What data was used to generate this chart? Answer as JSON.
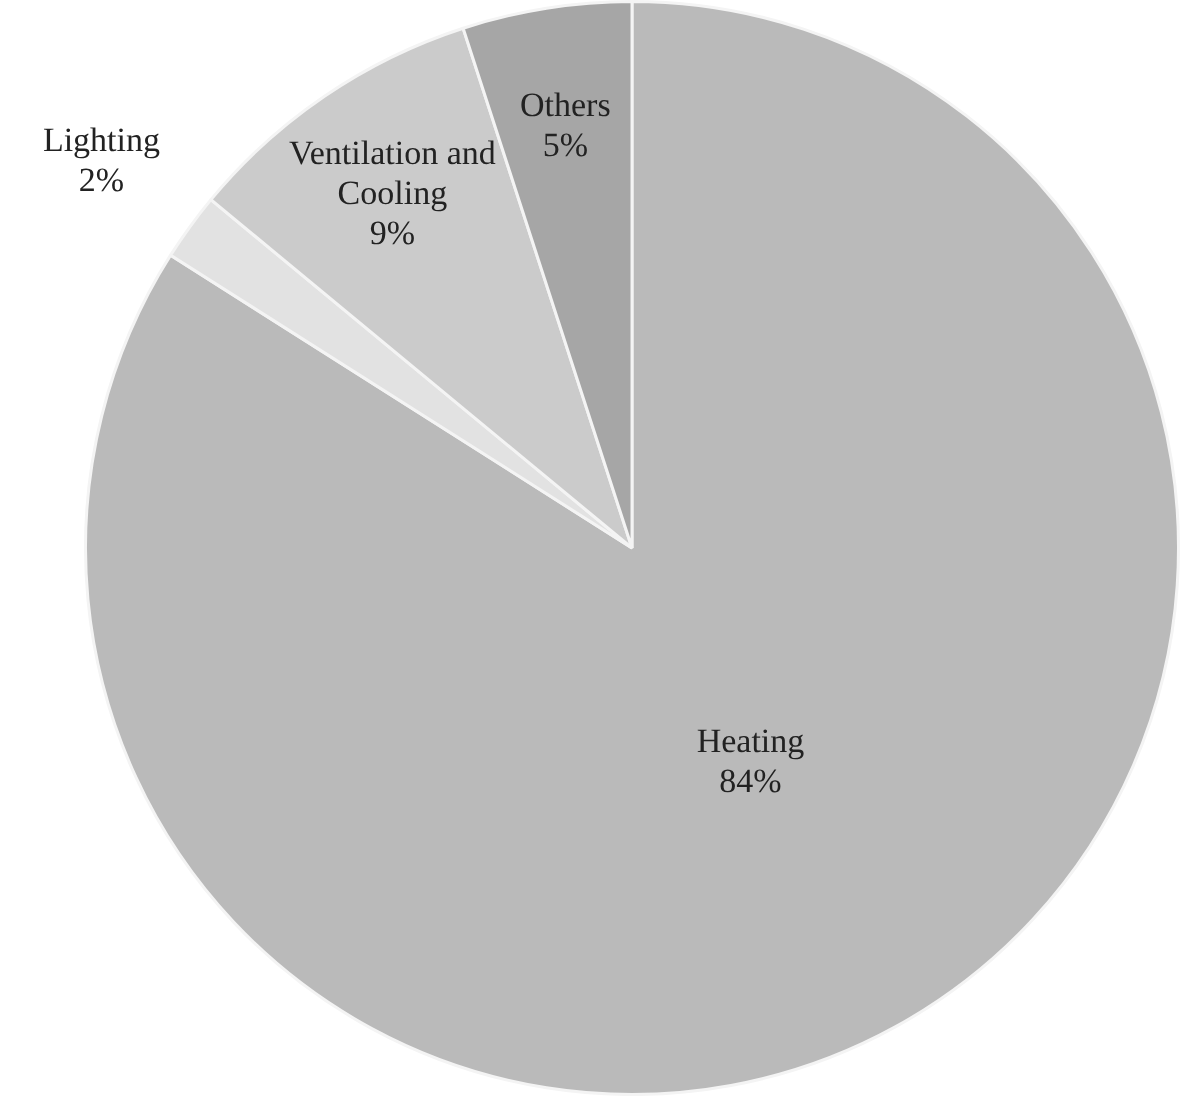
{
  "chart_data": {
    "type": "pie",
    "categories": [
      "Heating",
      "Lighting",
      "Ventilation and Cooling",
      "Others"
    ],
    "values": [
      84,
      2,
      9,
      5
    ],
    "value_labels": [
      "84%",
      "2%",
      "9%",
      "5%"
    ],
    "colors": [
      "#bababa",
      "#e2e2e2",
      "#cbcbcb",
      "#a6a6a6"
    ],
    "legend": false
  }
}
